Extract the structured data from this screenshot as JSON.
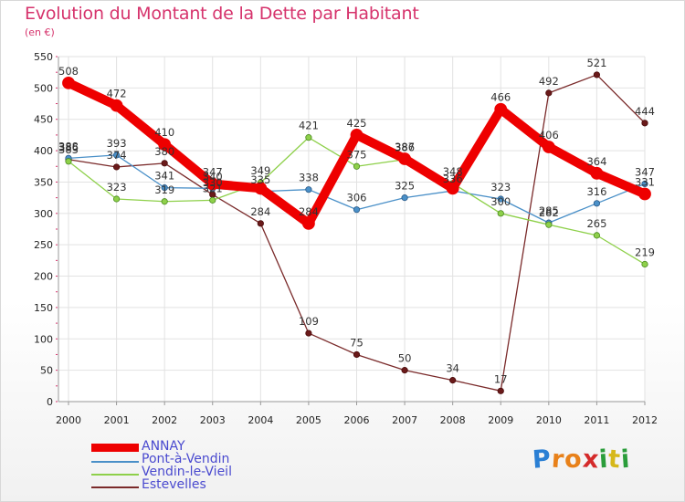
{
  "title": "Evolution du Montant de la Dette par Habitant",
  "subtitle": "(en €)",
  "logo": {
    "letters": [
      "P",
      "r",
      "o",
      "x",
      "i",
      "t",
      "i"
    ],
    "colors": [
      "#2a7fd4",
      "#e8811a",
      "#e8811a",
      "#d42a2a",
      "#2a9d3a",
      "#d6b81a",
      "#2a9d3a"
    ]
  },
  "chart_data": {
    "type": "line",
    "title": "Evolution du Montant de la Dette par Habitant",
    "ylabel": "(en €)",
    "xlabel": "",
    "categories": [
      "2000",
      "2001",
      "2002",
      "2003",
      "2004",
      "2005",
      "2006",
      "2007",
      "2008",
      "2009",
      "2010",
      "2011",
      "2012"
    ],
    "ylim": [
      0,
      550
    ],
    "yticks": [
      0,
      50,
      100,
      150,
      200,
      250,
      300,
      350,
      400,
      450,
      500,
      550
    ],
    "grid": true,
    "legend_position": "bottom-left",
    "series": [
      {
        "name": "ANNAY",
        "color": "#ee0000",
        "values": [
          508,
          472,
          410,
          347,
          340,
          284,
          425,
          387,
          340,
          466,
          406,
          364,
          331
        ],
        "labels": [
          "508",
          "472",
          "410",
          "347",
          "",
          "284",
          "425",
          "387",
          "",
          "466",
          "406",
          "364",
          "331"
        ]
      },
      {
        "name": "Pont-à-Vendin",
        "color": "#4a90c8",
        "values": [
          388,
          393,
          341,
          340,
          335,
          338,
          306,
          325,
          336,
          323,
          285,
          316,
          347
        ],
        "labels": [
          "388",
          "393",
          "341",
          "340",
          "335",
          "338",
          "306",
          "325",
          "336",
          "323",
          "285",
          "316",
          "347"
        ]
      },
      {
        "name": "Vendin-le-Vieil",
        "color": "#8ed04a",
        "values": [
          383,
          323,
          319,
          321,
          349,
          421,
          375,
          386,
          348,
          300,
          282,
          265,
          219
        ],
        "labels": [
          "383",
          "323",
          "319",
          "321",
          "349",
          "421",
          "375",
          "386",
          "348",
          "300",
          "282",
          "265",
          "219"
        ]
      },
      {
        "name": "Estevelles",
        "color": "#7a2a2a",
        "values": [
          386,
          374,
          380,
          330,
          284,
          109,
          75,
          50,
          34,
          17,
          492,
          521,
          444
        ],
        "labels": [
          "386",
          "374",
          "380",
          "330",
          "284",
          "109",
          "75",
          "50",
          "34",
          "17",
          "492",
          "521",
          "444"
        ]
      }
    ]
  }
}
